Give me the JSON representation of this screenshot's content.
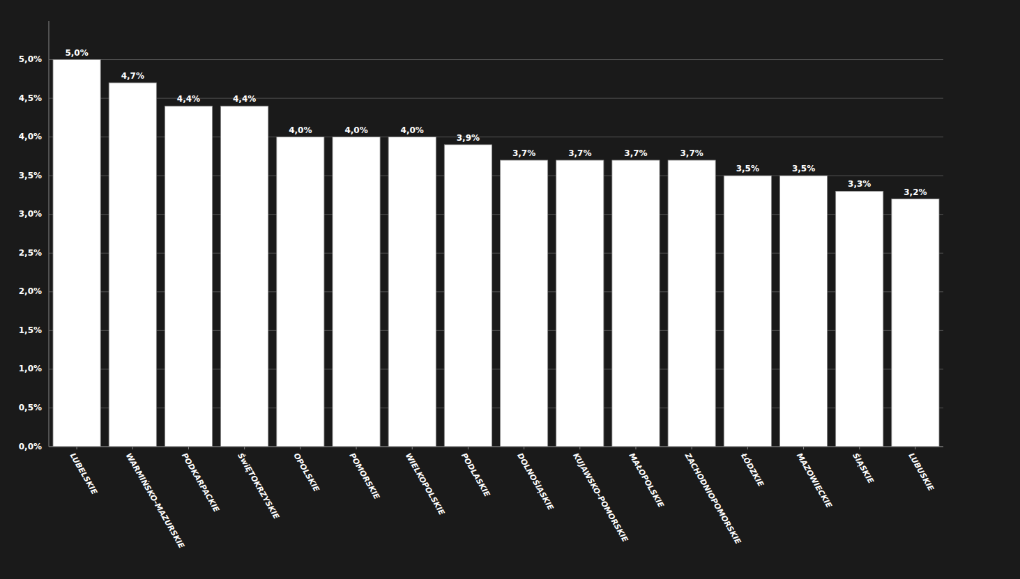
{
  "chart_data": {
    "type": "bar",
    "categories": [
      "LUBELSKIE",
      "WARMIŃSKO-MAZURSKIE",
      "PODKARPACKIE",
      "ŚwiĘTOKRZYSKIE",
      "OPOLSKIE",
      "POMORSKIE",
      "WIELKOPOLSKIE",
      "PODLASKIE",
      "DOLNOŚlĄSKIE",
      "KUJAWSKO-POMORSKIE",
      "MAŁOPOLSKIE",
      "ZACHODNIOPOMORSKIE",
      "ŁÓDZKIE",
      "MAZOWIECKIE",
      "ŚlĄSKIE",
      "LUBUSKIE"
    ],
    "values": [
      5.0,
      4.7,
      4.4,
      4.4,
      4.0,
      4.0,
      4.0,
      3.9,
      3.7,
      3.7,
      3.7,
      3.7,
      3.5,
      3.5,
      3.3,
      3.2
    ],
    "value_labels": [
      "5,0%",
      "4,7%",
      "4,4%",
      "4,4%",
      "4,0%",
      "4,0%",
      "4,0%",
      "3,9%",
      "3,7%",
      "3,7%",
      "3,7%",
      "3,7%",
      "3,5%",
      "3,5%",
      "3,3%",
      "3,2%"
    ],
    "color": "#ffffff",
    "ylim": [
      0,
      5.5
    ],
    "yticks": [
      {
        "value": 0.0,
        "label": "0,0%"
      },
      {
        "value": 0.5,
        "label": "0,5%"
      },
      {
        "value": 1.0,
        "label": "1,0%"
      },
      {
        "value": 1.5,
        "label": "1,5%"
      },
      {
        "value": 2.0,
        "label": "2,0%"
      },
      {
        "value": 2.5,
        "label": "2,5%"
      },
      {
        "value": 3.0,
        "label": "3,0%"
      },
      {
        "value": 3.5,
        "label": "3,5%"
      },
      {
        "value": 4.0,
        "label": "4,0%"
      },
      {
        "value": 4.5,
        "label": "4,5%"
      },
      {
        "value": 5.0,
        "label": "5,0%"
      }
    ],
    "grid": true,
    "data_labels": true
  }
}
